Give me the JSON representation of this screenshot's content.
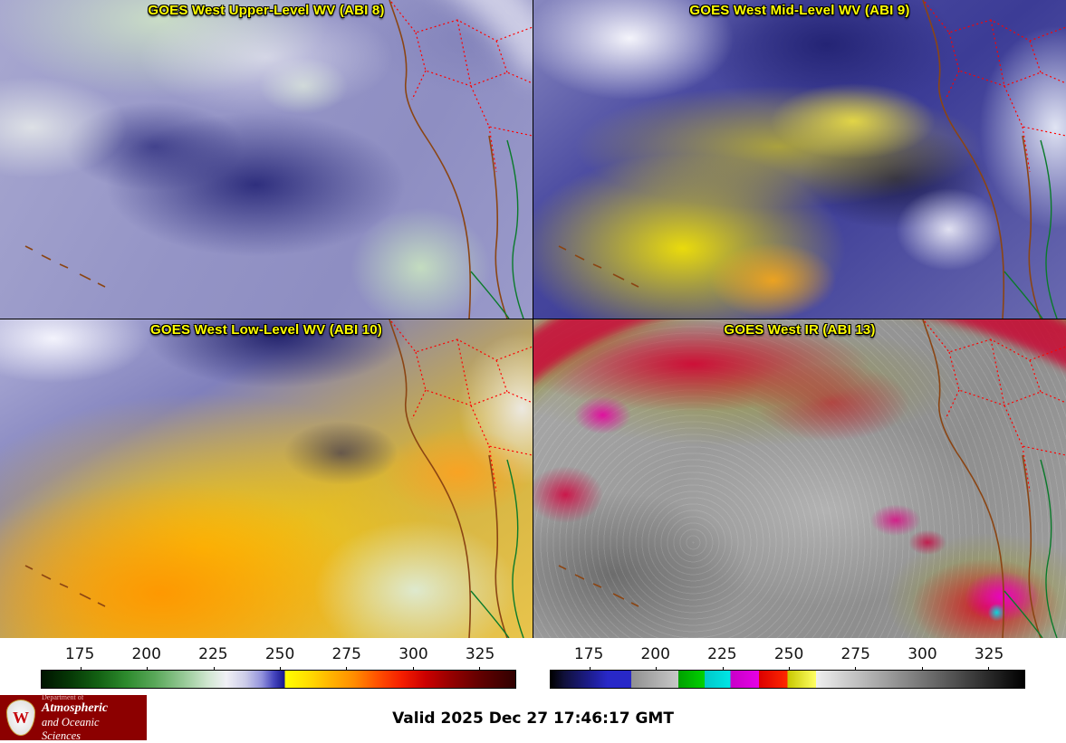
{
  "panels": [
    {
      "title": "GOES West Upper-Level WV (ABI 8)"
    },
    {
      "title": "GOES West Mid-Level WV (ABI 9)"
    },
    {
      "title": "GOES West Low-Level WV (ABI 10)"
    },
    {
      "title": "GOES West IR (ABI 13)"
    }
  ],
  "colorbar_wv": {
    "ticks": [
      "175",
      "200",
      "225",
      "250",
      "275",
      "300",
      "325"
    ],
    "tick_positions_pct": [
      8.2,
      22.23,
      36.26,
      50.3,
      64.33,
      78.37,
      92.4
    ],
    "stops": [
      [
        0,
        "#001400"
      ],
      [
        6,
        "#063806"
      ],
      [
        12,
        "#136113"
      ],
      [
        18,
        "#2e8b2e"
      ],
      [
        24,
        "#5aa85a"
      ],
      [
        30,
        "#96c996"
      ],
      [
        35,
        "#cfe6cf"
      ],
      [
        39,
        "#f0f0f6"
      ],
      [
        43,
        "#cccce9"
      ],
      [
        46.5,
        "#9292dc"
      ],
      [
        49,
        "#4646be"
      ],
      [
        51.3,
        "#16168e"
      ],
      [
        51.3,
        "#ffff00"
      ],
      [
        56,
        "#ffe000"
      ],
      [
        61,
        "#ffb400"
      ],
      [
        66,
        "#ff8c00"
      ],
      [
        71,
        "#ff5000"
      ],
      [
        76,
        "#f51e00"
      ],
      [
        81,
        "#cc0000"
      ],
      [
        86,
        "#990000"
      ],
      [
        92,
        "#660000"
      ],
      [
        100,
        "#300000"
      ]
    ]
  },
  "colorbar_ir": {
    "ticks": [
      "175",
      "200",
      "225",
      "250",
      "275",
      "300",
      "325"
    ],
    "tick_positions_pct": [
      8.2,
      22.23,
      36.26,
      50.3,
      64.33,
      78.37,
      92.4
    ],
    "stops": [
      [
        0,
        "#000000"
      ],
      [
        3,
        "#10103c"
      ],
      [
        8,
        "#1c1c8a"
      ],
      [
        12,
        "#2828c8"
      ],
      [
        17,
        "#2828c8"
      ],
      [
        17,
        "#909090"
      ],
      [
        27,
        "#c8c8c8"
      ],
      [
        27,
        "#00a000"
      ],
      [
        32.5,
        "#00d200"
      ],
      [
        32.5,
        "#00c8c8"
      ],
      [
        38,
        "#00e6e6"
      ],
      [
        38,
        "#c800c8"
      ],
      [
        44,
        "#e600e6"
      ],
      [
        44,
        "#dc0000"
      ],
      [
        50,
        "#ff2800"
      ],
      [
        50,
        "#c8c800"
      ],
      [
        56,
        "#ffff64"
      ],
      [
        56,
        "#efefef"
      ],
      [
        78,
        "#787878"
      ],
      [
        100,
        "#000000"
      ]
    ]
  },
  "footer": {
    "valid_time": "Valid 2025 Dec 27 17:46:17 GMT"
  },
  "logo": {
    "crest_letter": "W",
    "dept_line": "Department of",
    "name_line1": "Atmospheric",
    "name_line2": "and Oceanic Sciences",
    "bg_color": "#8c0000"
  },
  "colors": {
    "panel_title": "#ffff00",
    "coastline": "#8b4513",
    "state_borders": "#ff0000",
    "rivers": "#0a7a2a",
    "valid_text": "#000000"
  }
}
